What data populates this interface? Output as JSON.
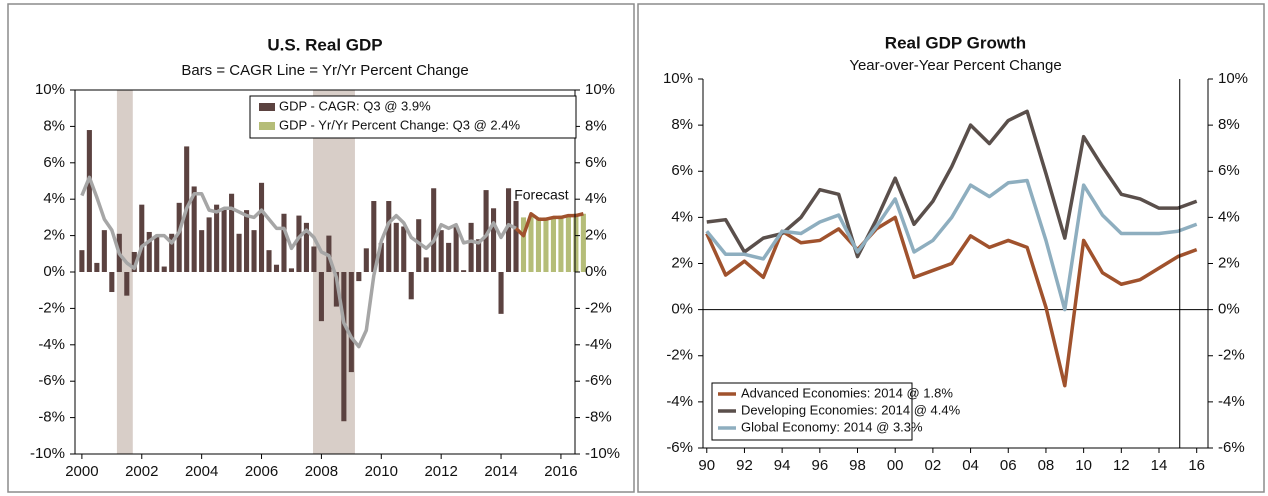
{
  "chart_data": [
    {
      "type": "bar",
      "title": "U.S. Real GDP",
      "subtitle": "Bars = CAGR   Line = Yr/Yr Percent Change",
      "annotation": "Forecast",
      "x": [
        2000,
        2000.25,
        2000.5,
        2000.75,
        2001,
        2001.25,
        2001.5,
        2001.75,
        2002,
        2002.25,
        2002.5,
        2002.75,
        2003,
        2003.25,
        2003.5,
        2003.75,
        2004,
        2004.25,
        2004.5,
        2004.75,
        2005,
        2005.25,
        2005.5,
        2005.75,
        2006,
        2006.25,
        2006.5,
        2006.75,
        2007,
        2007.25,
        2007.5,
        2007.75,
        2008,
        2008.25,
        2008.5,
        2008.75,
        2009,
        2009.25,
        2009.5,
        2009.75,
        2010,
        2010.25,
        2010.5,
        2010.75,
        2011,
        2011.25,
        2011.5,
        2011.75,
        2012,
        2012.25,
        2012.5,
        2012.75,
        2013,
        2013.25,
        2013.5,
        2013.75,
        2014,
        2014.25,
        2014.5,
        2014.75,
        2015,
        2015.25,
        2015.5,
        2015.75,
        2016,
        2016.25,
        2016.5,
        2016.75
      ],
      "series": [
        {
          "name": "GDP - CAGR: Q3 @ 3.9%",
          "type": "bar",
          "color": "#5b4240",
          "values": [
            1.2,
            7.8,
            0.5,
            2.3,
            -1.1,
            2.1,
            -1.3,
            1.1,
            3.7,
            2.2,
            2.0,
            0.3,
            2.1,
            3.8,
            6.9,
            4.7,
            2.3,
            3.0,
            3.7,
            3.5,
            4.3,
            2.1,
            3.4,
            2.3,
            4.9,
            1.2,
            0.4,
            3.2,
            0.2,
            3.1,
            2.7,
            1.4,
            -2.7,
            2.0,
            -1.9,
            -8.2,
            -5.5,
            -0.5,
            1.3,
            3.9,
            1.6,
            3.9,
            2.7,
            2.5,
            -1.5,
            2.9,
            0.8,
            4.6,
            2.3,
            1.6,
            2.5,
            0.1,
            2.7,
            1.8,
            4.5,
            3.5,
            -2.3,
            4.6,
            3.9,
            null,
            null,
            null,
            null,
            null,
            null,
            null,
            null,
            null
          ]
        },
        {
          "name": "GDP - Yr/Yr Percent Change: Q3 @ 2.4%",
          "type": "bar",
          "color": "#b5bd78",
          "values": [
            null,
            null,
            null,
            null,
            null,
            null,
            null,
            null,
            null,
            null,
            null,
            null,
            null,
            null,
            null,
            null,
            null,
            null,
            null,
            null,
            null,
            null,
            null,
            null,
            null,
            null,
            null,
            null,
            null,
            null,
            null,
            null,
            null,
            null,
            null,
            null,
            null,
            null,
            null,
            null,
            null,
            null,
            null,
            null,
            null,
            null,
            null,
            null,
            null,
            null,
            null,
            null,
            null,
            null,
            null,
            null,
            null,
            null,
            null,
            3.0,
            3.1,
            3.0,
            3.0,
            3.0,
            3.1,
            3.1,
            3.2,
            3.2
          ]
        },
        {
          "type": "line",
          "color": "#a6a6a6",
          "values": [
            4.2,
            5.2,
            4.1,
            2.9,
            2.3,
            1.0,
            0.5,
            0.2,
            1.4,
            1.7,
            2.0,
            2.0,
            1.6,
            2.2,
            3.5,
            4.3,
            4.3,
            3.4,
            3.3,
            3.5,
            3.5,
            3.3,
            3.1,
            3.0,
            3.4,
            2.9,
            2.4,
            2.4,
            1.3,
            1.9,
            2.3,
            1.9,
            1.1,
            0.9,
            -0.3,
            -2.8,
            -3.6,
            -4.1,
            -3.2,
            -0.2,
            1.7,
            2.7,
            3.1,
            2.7,
            1.9,
            1.6,
            1.3,
            1.7,
            2.6,
            2.4,
            2.6,
            1.6,
            1.7,
            1.6,
            2.0,
            2.7,
            1.9,
            2.6,
            2.4,
            null,
            null,
            null,
            null,
            null,
            null,
            null,
            null,
            null
          ]
        },
        {
          "type": "line",
          "color": "#a0522d",
          "values": [
            null,
            null,
            null,
            null,
            null,
            null,
            null,
            null,
            null,
            null,
            null,
            null,
            null,
            null,
            null,
            null,
            null,
            null,
            null,
            null,
            null,
            null,
            null,
            null,
            null,
            null,
            null,
            null,
            null,
            null,
            null,
            null,
            null,
            null,
            null,
            null,
            null,
            null,
            null,
            null,
            null,
            null,
            null,
            null,
            null,
            null,
            null,
            null,
            null,
            null,
            null,
            null,
            null,
            null,
            null,
            null,
            null,
            null,
            2.4,
            2.0,
            3.2,
            2.9,
            2.9,
            3.0,
            3.0,
            3.1,
            3.1,
            3.2
          ]
        }
      ],
      "shaded": [
        [
          2001.17,
          2001.7
        ],
        [
          2007.72,
          2009.12
        ]
      ],
      "xlim": [
        1999.77,
        2016.47
      ],
      "xticks": [
        2000,
        2002,
        2004,
        2006,
        2008,
        2010,
        2012,
        2014,
        2016
      ],
      "ylim": [
        -10,
        10
      ],
      "yticks": [
        {
          "value": -10,
          "label": "-10%"
        },
        {
          "value": -8,
          "label": "-8%"
        },
        {
          "value": -6,
          "label": "-6%"
        },
        {
          "value": -4,
          "label": "-4%"
        },
        {
          "value": -2,
          "label": "-2%"
        },
        {
          "value": 0,
          "label": "0%"
        },
        {
          "value": 2,
          "label": "2%"
        },
        {
          "value": 4,
          "label": "4%"
        },
        {
          "value": 6,
          "label": "6%"
        },
        {
          "value": 8,
          "label": "8%"
        },
        {
          "value": 10,
          "label": "10%"
        }
      ],
      "y2lim": [
        -10,
        10
      ],
      "y2ticks": [
        {
          "value": -10,
          "label": "-10%"
        },
        {
          "value": -8,
          "label": "-8%"
        },
        {
          "value": -6,
          "label": "-6%"
        },
        {
          "value": -4,
          "label": "-4%"
        },
        {
          "value": -2,
          "label": "-2%"
        },
        {
          "value": 0,
          "label": "0%"
        },
        {
          "value": 2,
          "label": "2%"
        },
        {
          "value": 4,
          "label": "4%"
        },
        {
          "value": 6,
          "label": "6%"
        },
        {
          "value": 8,
          "label": "8%"
        },
        {
          "value": 10,
          "label": "10%"
        }
      ],
      "legend": "upper right"
    },
    {
      "type": "line",
      "title": "Real GDP Growth",
      "subtitle": "Year-over-Year Percent Change",
      "x": [
        1990,
        1991,
        1992,
        1993,
        1994,
        1995,
        1996,
        1997,
        1998,
        1999,
        2000,
        2001,
        2002,
        2003,
        2004,
        2005,
        2006,
        2007,
        2008,
        2009,
        2010,
        2011,
        2012,
        2013,
        2014,
        2015,
        2016
      ],
      "series": [
        {
          "name": "Advanced Economies: 2014 @ 1.8%",
          "type": "line",
          "color": "#a0522d",
          "values": [
            3.3,
            1.5,
            2.1,
            1.4,
            3.4,
            2.9,
            3.0,
            3.5,
            2.6,
            3.5,
            4.0,
            1.4,
            1.7,
            2.0,
            3.2,
            2.7,
            3.0,
            2.7,
            0.1,
            -3.3,
            3.0,
            1.6,
            1.1,
            1.3,
            1.8,
            2.3,
            2.6
          ]
        },
        {
          "name": "Developing Economies: 2014 @ 4.4%",
          "type": "line",
          "color": "#5a4f4b",
          "values": [
            3.8,
            3.9,
            2.5,
            3.1,
            3.3,
            4.0,
            5.2,
            5.0,
            2.3,
            3.9,
            5.7,
            3.7,
            4.7,
            6.2,
            8.0,
            7.2,
            8.2,
            8.6,
            5.9,
            3.1,
            7.5,
            6.2,
            5.0,
            4.8,
            4.4,
            4.4,
            4.7
          ]
        },
        {
          "name": "Global Economy: 2014 @ 3.3%",
          "type": "line",
          "color": "#8eaebf",
          "values": [
            3.4,
            2.4,
            2.4,
            2.2,
            3.4,
            3.3,
            3.8,
            4.1,
            2.5,
            3.6,
            4.8,
            2.5,
            3.0,
            4.0,
            5.4,
            4.9,
            5.5,
            5.6,
            3.0,
            0.0,
            5.4,
            4.1,
            3.3,
            3.3,
            3.3,
            3.4,
            3.7
          ]
        }
      ],
      "divider": 2015.1,
      "zero_line": true,
      "xlim": [
        1989.8,
        2016.6
      ],
      "xticks": [
        {
          "value": 1990,
          "label": "90"
        },
        {
          "value": 1992,
          "label": "92"
        },
        {
          "value": 1994,
          "label": "94"
        },
        {
          "value": 1996,
          "label": "96"
        },
        {
          "value": 1998,
          "label": "98"
        },
        {
          "value": 2000,
          "label": "00"
        },
        {
          "value": 2002,
          "label": "02"
        },
        {
          "value": 2004,
          "label": "04"
        },
        {
          "value": 2006,
          "label": "06"
        },
        {
          "value": 2008,
          "label": "08"
        },
        {
          "value": 2010,
          "label": "10"
        },
        {
          "value": 2012,
          "label": "12"
        },
        {
          "value": 2014,
          "label": "14"
        },
        {
          "value": 2016,
          "label": "16"
        }
      ],
      "ylim": [
        -6,
        10
      ],
      "yticks": [
        {
          "value": -6,
          "label": "-6%"
        },
        {
          "value": -4,
          "label": "-4%"
        },
        {
          "value": -2,
          "label": "-2%"
        },
        {
          "value": 0,
          "label": "0%"
        },
        {
          "value": 2,
          "label": "2%"
        },
        {
          "value": 4,
          "label": "4%"
        },
        {
          "value": 6,
          "label": "6%"
        },
        {
          "value": 8,
          "label": "8%"
        },
        {
          "value": 10,
          "label": "10%"
        }
      ],
      "y2lim": [
        -6,
        10
      ],
      "y2ticks": [
        {
          "value": -6,
          "label": "-6%"
        },
        {
          "value": -4,
          "label": "-4%"
        },
        {
          "value": -2,
          "label": "-2%"
        },
        {
          "value": 0,
          "label": "0%"
        },
        {
          "value": 2,
          "label": "2%"
        },
        {
          "value": 4,
          "label": "4%"
        },
        {
          "value": 6,
          "label": "6%"
        },
        {
          "value": 8,
          "label": "8%"
        },
        {
          "value": 10,
          "label": "10%"
        }
      ],
      "legend": "lower left"
    }
  ]
}
